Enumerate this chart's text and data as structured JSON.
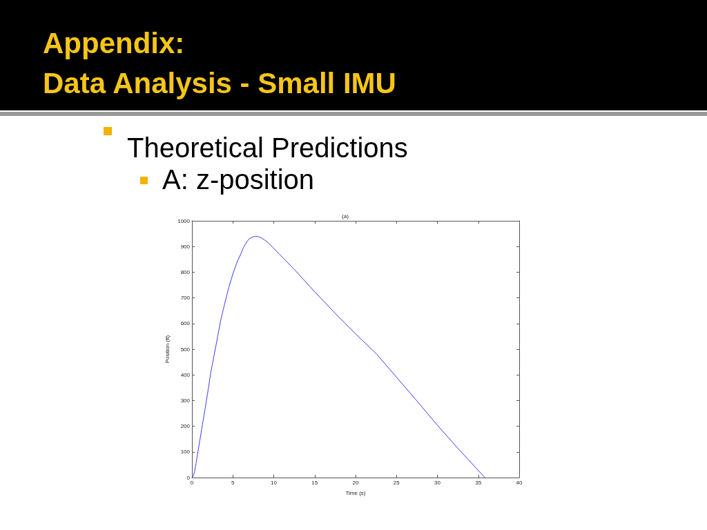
{
  "chart_data": {
    "type": "line",
    "title": "(a)",
    "xlabel": "Time (s)",
    "ylabel": "Position (ft)",
    "annotations": [
      "Appendix:",
      "Data Analysis - Small IMU",
      "Theoretical Predictions",
      "A: z-position"
    ],
    "series": [
      {
        "color": "#3c3cf0",
        "x": [
          0,
          0.15,
          0.34,
          0.5,
          0.9,
          1.2,
          1.6,
          2,
          2.3,
          2.7,
          3.16,
          3.5,
          4.0,
          4.5,
          5,
          5.5,
          6,
          6.3,
          6.8,
          7,
          7.4,
          7.8,
          8.3,
          8.8,
          9.3,
          9.9,
          12.5,
          15,
          17.5,
          20,
          22.6,
          25,
          27.4,
          30,
          32.5,
          35.8
        ],
        "values": [
          0,
          5,
          25,
          55,
          132,
          190,
          266,
          345,
          409,
          475,
          552,
          610,
          677,
          740,
          793,
          838,
          873,
          897,
          922,
          930,
          937,
          940,
          937,
          927,
          915,
          896,
          811,
          724,
          640,
          560,
          480,
          391,
          302,
          204,
          114,
          0
        ]
      }
    ],
    "xlim": [
      0,
      40
    ],
    "xticks": [
      0,
      5,
      10,
      15,
      20,
      25,
      30,
      35,
      40
    ],
    "ylim": [
      0,
      1000
    ],
    "yticks": [
      0,
      100,
      200,
      300,
      400,
      500,
      600,
      700,
      800,
      900,
      1000
    ],
    "grid": false,
    "marker": "none",
    "line_style": "solid"
  }
}
